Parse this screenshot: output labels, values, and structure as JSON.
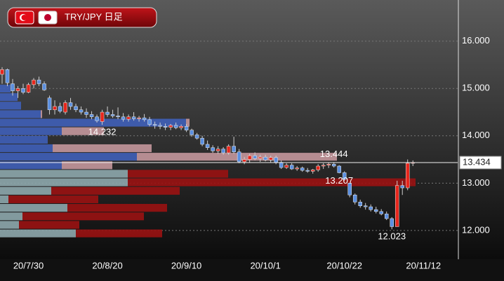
{
  "chart_data": {
    "type": "candlestick",
    "title": "TRY/JPY 日足",
    "open": [
      15.3,
      15.4,
      15.1,
      14.95,
      15.0,
      14.92,
      15.08,
      15.18,
      15.1,
      14.8,
      14.55,
      14.62,
      14.5,
      14.7,
      14.62,
      14.55,
      14.5,
      14.45,
      14.4,
      14.3,
      14.5,
      14.45,
      14.42,
      14.4,
      14.35,
      14.4,
      14.36,
      14.38,
      14.34,
      14.24,
      14.22,
      14.2,
      14.18,
      14.22,
      14.17,
      14.2,
      14.12,
      14.02,
      13.95,
      13.82,
      13.75,
      13.68,
      13.72,
      13.64,
      13.78,
      13.66,
      13.45,
      13.5,
      13.58,
      13.52,
      13.55,
      13.49,
      13.54,
      13.44,
      13.33,
      13.38,
      13.3,
      13.32,
      13.27,
      13.25,
      13.28,
      13.36,
      13.38,
      13.4,
      13.36,
      13.22,
      13.0,
      12.75,
      12.6,
      12.52,
      12.5,
      12.44,
      12.4,
      12.35,
      12.25,
      12.08,
      12.95,
      12.9,
      13.42
    ],
    "high": [
      15.45,
      15.42,
      15.2,
      15.05,
      15.1,
      15.12,
      15.22,
      15.25,
      15.15,
      14.85,
      14.75,
      14.7,
      14.75,
      14.8,
      14.68,
      14.62,
      14.58,
      14.52,
      14.45,
      14.55,
      14.62,
      14.55,
      14.6,
      14.48,
      14.45,
      14.5,
      14.42,
      14.46,
      14.4,
      14.3,
      14.28,
      14.26,
      14.25,
      14.28,
      14.24,
      14.25,
      14.15,
      14.06,
      14.0,
      13.9,
      13.8,
      13.78,
      13.76,
      13.82,
      13.98,
      13.72,
      13.55,
      13.62,
      13.65,
      13.6,
      13.6,
      13.58,
      13.58,
      13.48,
      13.42,
      13.42,
      13.36,
      13.35,
      13.32,
      13.3,
      13.4,
      13.42,
      13.43,
      13.444,
      13.38,
      13.25,
      13.0,
      12.78,
      12.65,
      12.58,
      12.55,
      12.5,
      12.45,
      12.4,
      12.28,
      13.05,
      13.05,
      13.5,
      13.48
    ],
    "low": [
      15.1,
      15.05,
      14.85,
      14.8,
      14.88,
      14.9,
      15.0,
      15.05,
      14.95,
      14.45,
      14.45,
      14.48,
      14.45,
      14.55,
      14.5,
      14.45,
      14.38,
      14.35,
      14.28,
      14.232,
      14.4,
      14.38,
      14.35,
      14.3,
      14.3,
      14.32,
      14.3,
      14.3,
      14.2,
      14.15,
      14.14,
      14.12,
      14.12,
      14.14,
      14.12,
      14.08,
      13.98,
      13.92,
      13.78,
      13.7,
      13.64,
      13.62,
      13.6,
      13.6,
      13.62,
      13.42,
      13.4,
      13.44,
      13.48,
      13.45,
      13.46,
      13.44,
      13.4,
      13.3,
      13.3,
      13.28,
      13.26,
      13.24,
      13.22,
      13.2,
      13.24,
      13.3,
      13.32,
      13.33,
      13.207,
      13.05,
      12.7,
      12.55,
      12.48,
      12.44,
      12.4,
      12.36,
      12.32,
      12.22,
      12.023,
      12.1,
      12.75,
      12.85,
      13.36
    ],
    "close": [
      15.4,
      15.12,
      14.95,
      15.0,
      14.92,
      15.08,
      15.18,
      15.1,
      14.97,
      14.55,
      14.62,
      14.52,
      14.7,
      14.62,
      14.55,
      14.5,
      14.45,
      14.4,
      14.32,
      14.5,
      14.45,
      14.42,
      14.4,
      14.35,
      14.4,
      14.36,
      14.38,
      14.34,
      14.24,
      14.22,
      14.2,
      14.18,
      14.22,
      14.17,
      14.2,
      14.12,
      14.02,
      13.95,
      13.82,
      13.75,
      13.68,
      13.72,
      13.64,
      13.78,
      13.66,
      13.45,
      13.5,
      13.58,
      13.52,
      13.55,
      13.49,
      13.54,
      13.44,
      13.33,
      13.38,
      13.3,
      13.32,
      13.27,
      13.25,
      13.28,
      13.36,
      13.38,
      13.4,
      13.36,
      13.22,
      13.08,
      12.75,
      12.6,
      12.52,
      12.5,
      12.44,
      12.4,
      12.35,
      12.25,
      12.08,
      12.95,
      12.9,
      13.42,
      13.434
    ],
    "up_color": "#e8261c",
    "down_color": "#5b8fe0",
    "ylim": [
      11.42,
      16.87
    ],
    "yticks": [
      {
        "value": 12,
        "label": "12.000"
      },
      {
        "value": 13,
        "label": "13.000"
      },
      {
        "value": 14,
        "label": "14.000"
      },
      {
        "value": 15,
        "label": "15.000"
      },
      {
        "value": 16,
        "label": "16.000"
      }
    ],
    "xlim": [
      -0.4,
      86.5
    ],
    "xticks": [
      {
        "value": 5,
        "label": "20/7/30"
      },
      {
        "value": 20,
        "label": "20/8/20"
      },
      {
        "value": 35,
        "label": "20/9/10"
      },
      {
        "value": 50,
        "label": "20/10/1"
      },
      {
        "value": 65,
        "label": "20/10/22"
      },
      {
        "value": 80,
        "label": "20/11/12"
      }
    ],
    "grid": true,
    "high_low_labels": [
      14.232,
      13.444,
      13.207,
      12.023
    ],
    "profile": {
      "levels": [
        11.93,
        12.11,
        12.29,
        12.47,
        12.65,
        12.83,
        13.01,
        13.19,
        13.37,
        13.55,
        13.73,
        13.91,
        14.09,
        14.27,
        14.45,
        14.63,
        14.81,
        14.99
      ],
      "left": [
        108,
        27,
        32,
        96,
        12,
        73,
        182,
        182,
        88,
        195,
        75,
        68,
        88,
        265,
        58,
        30,
        25,
        15
      ],
      "right": [
        123,
        86,
        173,
        142,
        128,
        183,
        410,
        143,
        72,
        285,
        141,
        0,
        60,
        5,
        2,
        0,
        0,
        0
      ],
      "lower_colors": [
        "#8ea8ad",
        "#9a1212"
      ],
      "upper_colors": [
        "#3f5fb8",
        "#c4979c"
      ]
    }
  }
}
